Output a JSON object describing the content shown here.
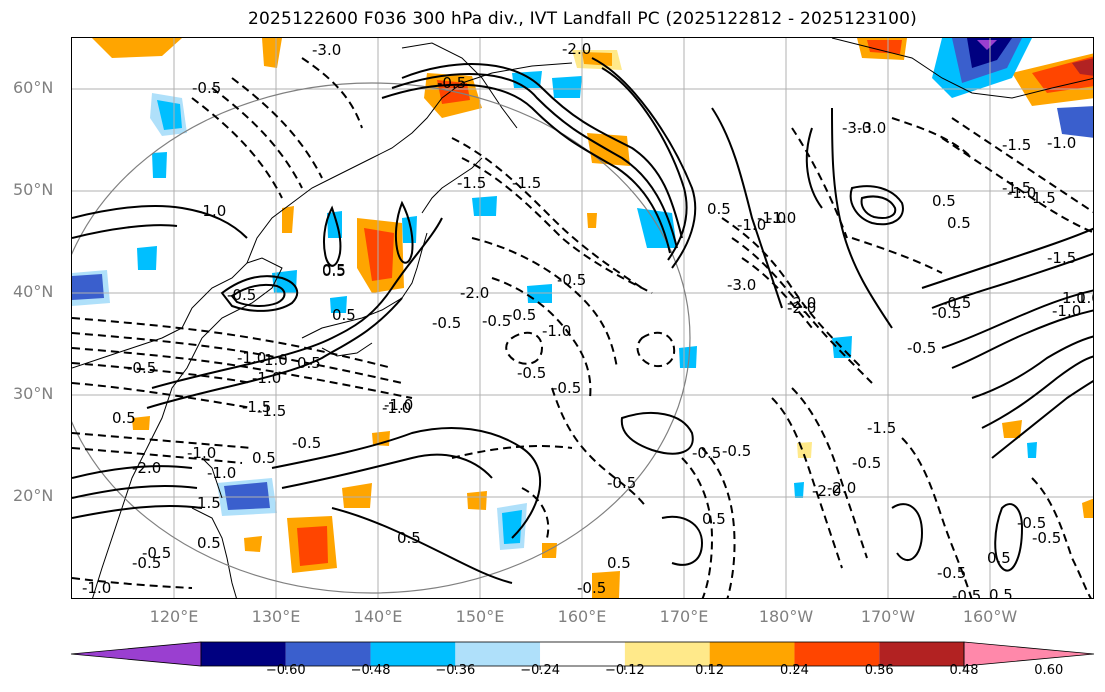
{
  "title": "2025122600 F036 300 hPa div., IVT Landfall PC (2025122812 - 2025123100)",
  "lat_labels": [
    "60°N",
    "50°N",
    "40°N",
    "30°N",
    "20°N"
  ],
  "lon_labels": [
    "120°E",
    "130°E",
    "140°E",
    "150°E",
    "160°E",
    "170°E",
    "180°W",
    "170°W",
    "160°W"
  ],
  "colorbar": {
    "ticks": [
      "−0.60",
      "−0.48",
      "−0.36",
      "−0.24",
      "−0.12",
      "0.12",
      "0.24",
      "0.36",
      "0.48",
      "0.60"
    ],
    "colors": [
      "#9a3fd0",
      "#000080",
      "#3a5fcd",
      "#00bfff",
      "#afe0fa",
      "#ffffff",
      "#ffe98a",
      "#ffa500",
      "#ff4500",
      "#b22222",
      "#ff88aa"
    ]
  },
  "contour_labels": [
    "-1.0",
    "-0.5",
    "-2.0",
    "-1.5",
    "-3.0",
    "-2.0",
    "-0.5",
    "-1.0",
    "0.5",
    "1.0",
    "-0.5",
    "-1.0",
    "-0.5",
    "-2.0",
    "-1.5",
    "-0.5",
    "-1.0",
    "-1.5",
    "0.5",
    "0.5",
    "-0.5",
    "-0.5",
    "-1.0",
    "-2.0",
    "-3.0",
    "-1.0",
    "0.5",
    "-0.5",
    "0.5",
    "-0.5",
    "-0.5",
    "-0.5",
    "-1.0",
    "-1.0",
    "-1.5",
    "1.0",
    "0.5",
    "-0.5",
    "1.5",
    "-1.0",
    "-0.5",
    "0.5",
    "-1.5",
    "-0.5",
    "0.5",
    "1.0",
    "-1.0",
    "-0.5",
    "0.5",
    "-1.0",
    "-0.5",
    "-0.5",
    "-2.0",
    "-1.0",
    "0.5",
    "1.5",
    "-0.5",
    "-0.5",
    "-3.0",
    "-1.0",
    "-1.5",
    "-3.0",
    "-2.0",
    "-0.5",
    "0.5",
    "-0.5",
    "-0.5",
    "0.5",
    "-0.5",
    "-1.5",
    "0.5",
    "-1.0",
    "0.5",
    "-1.0",
    "-2.0",
    "-0.5",
    "0.5",
    "-0.5",
    "-1.5"
  ]
}
